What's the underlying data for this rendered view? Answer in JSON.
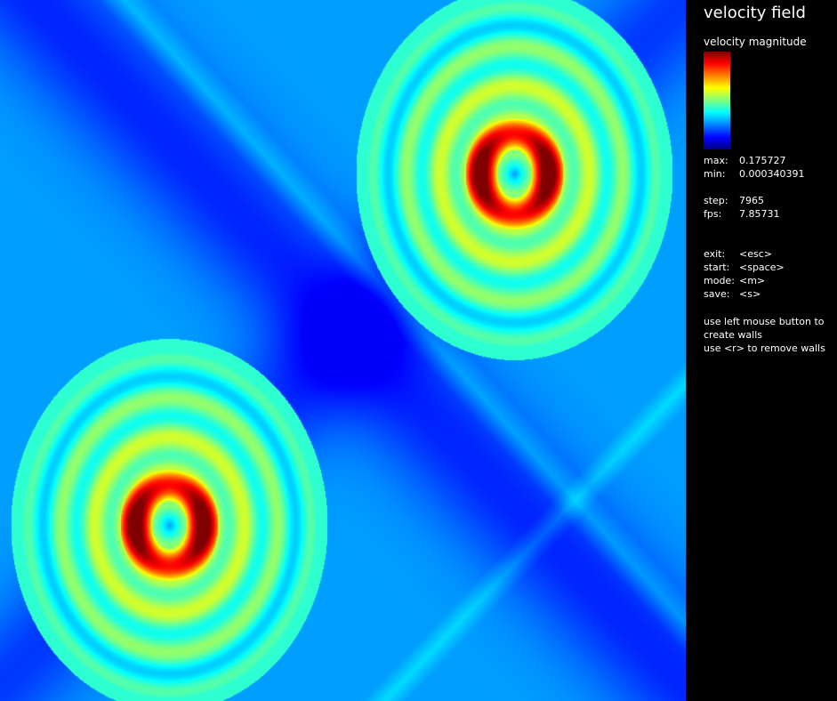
{
  "panel": {
    "title": "velocity field",
    "colorbar_label": "velocity magnitude",
    "stats": [
      {
        "key": "max:",
        "value": "0.175727"
      },
      {
        "key": "min:",
        "value": "0.000340391"
      },
      {
        "key": "step:",
        "value": "7965"
      },
      {
        "key": "fps:",
        "value": "7.85731"
      }
    ],
    "controls": [
      {
        "key": "exit:",
        "value": "<esc>"
      },
      {
        "key": "start:",
        "value": "<space>"
      },
      {
        "key": "mode:",
        "value": "<m>"
      },
      {
        "key": "save:",
        "value": "<s>"
      }
    ],
    "help": [
      "use left mouse button to",
      "create walls",
      "use <r> to remove walls"
    ]
  },
  "colormap": "jet",
  "colors": {
    "background": "#000000",
    "text": "#ffffff"
  }
}
